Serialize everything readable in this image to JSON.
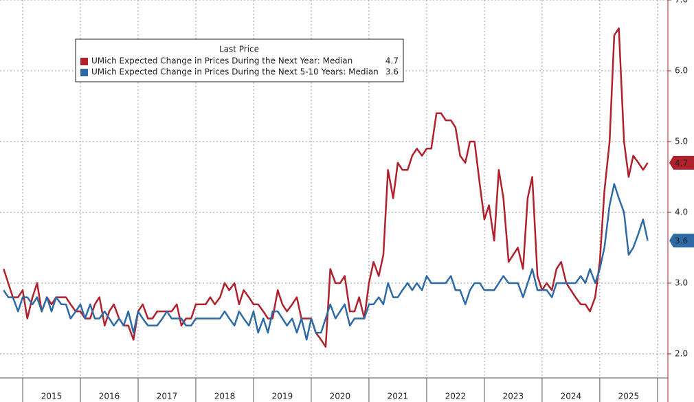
{
  "chart_data": {
    "type": "line",
    "legend_title": "Last Price",
    "x": [
      2014.67,
      2014.75,
      2014.83,
      2014.92,
      2015.0,
      2015.08,
      2015.17,
      2015.25,
      2015.33,
      2015.42,
      2015.5,
      2015.58,
      2015.67,
      2015.75,
      2015.83,
      2015.92,
      2016.0,
      2016.08,
      2016.17,
      2016.25,
      2016.33,
      2016.42,
      2016.5,
      2016.58,
      2016.67,
      2016.75,
      2016.83,
      2016.92,
      2017.0,
      2017.08,
      2017.17,
      2017.25,
      2017.33,
      2017.42,
      2017.5,
      2017.58,
      2017.67,
      2017.75,
      2017.83,
      2017.92,
      2018.0,
      2018.08,
      2018.17,
      2018.25,
      2018.33,
      2018.42,
      2018.5,
      2018.58,
      2018.67,
      2018.75,
      2018.83,
      2018.92,
      2019.0,
      2019.08,
      2019.17,
      2019.25,
      2019.33,
      2019.42,
      2019.5,
      2019.58,
      2019.67,
      2019.75,
      2019.83,
      2019.92,
      2020.0,
      2020.08,
      2020.17,
      2020.25,
      2020.33,
      2020.42,
      2020.5,
      2020.58,
      2020.67,
      2020.75,
      2020.83,
      2020.92,
      2021.0,
      2021.08,
      2021.17,
      2021.25,
      2021.33,
      2021.42,
      2021.5,
      2021.58,
      2021.67,
      2021.75,
      2021.83,
      2021.92,
      2022.0,
      2022.08,
      2022.17,
      2022.25,
      2022.33,
      2022.42,
      2022.5,
      2022.58,
      2022.67,
      2022.75,
      2022.83,
      2022.92,
      2023.0,
      2023.08,
      2023.17,
      2023.25,
      2023.33,
      2023.42,
      2023.5,
      2023.58,
      2023.67,
      2023.75,
      2023.83,
      2023.92,
      2024.0,
      2024.08,
      2024.17,
      2024.25,
      2024.33,
      2024.42,
      2024.5,
      2024.58,
      2024.67,
      2024.75,
      2024.83,
      2024.92,
      2025.0,
      2025.08,
      2025.17,
      2025.25,
      2025.33,
      2025.42,
      2025.5,
      2025.58,
      2025.67,
      2025.75,
      2025.83
    ],
    "series": [
      {
        "name": "UMich Expected Change in Prices During the Next Year: Median",
        "color": "#b0202d",
        "values": [
          3.2,
          3.0,
          2.8,
          2.8,
          2.9,
          2.5,
          2.8,
          3.0,
          2.6,
          2.8,
          2.7,
          2.8,
          2.8,
          2.8,
          2.7,
          2.6,
          2.6,
          2.5,
          2.5,
          2.7,
          2.8,
          2.4,
          2.6,
          2.7,
          2.5,
          2.4,
          2.4,
          2.2,
          2.6,
          2.7,
          2.5,
          2.5,
          2.6,
          2.6,
          2.6,
          2.6,
          2.7,
          2.4,
          2.5,
          2.5,
          2.7,
          2.7,
          2.7,
          2.8,
          2.7,
          2.8,
          3.0,
          2.9,
          3.0,
          2.7,
          2.9,
          2.8,
          2.7,
          2.7,
          2.6,
          2.5,
          2.5,
          2.9,
          2.7,
          2.6,
          2.7,
          2.8,
          2.5,
          2.5,
          2.5,
          2.3,
          2.2,
          2.1,
          3.2,
          3.0,
          3.0,
          3.1,
          2.6,
          2.6,
          2.8,
          2.5,
          3.0,
          3.3,
          3.1,
          3.4,
          4.6,
          4.2,
          4.7,
          4.6,
          4.6,
          4.8,
          4.9,
          4.8,
          4.9,
          4.9,
          5.4,
          5.4,
          5.3,
          5.3,
          5.2,
          4.8,
          4.7,
          5.0,
          5.0,
          4.4,
          3.9,
          4.1,
          3.6,
          4.6,
          4.2,
          3.3,
          3.4,
          3.5,
          3.2,
          4.2,
          4.5,
          3.1,
          2.9,
          3.0,
          2.9,
          3.2,
          3.3,
          3.0,
          2.9,
          2.8,
          2.7,
          2.7,
          2.6,
          2.8,
          3.3,
          4.3,
          5.0,
          6.5,
          6.6,
          5.0,
          4.5,
          4.8,
          4.7,
          4.6,
          4.7
        ]
      },
      {
        "name": "UMich Expected Change in Prices During the Next 5-10 Years: Median",
        "color": "#2d6aa6",
        "values": [
          2.9,
          2.8,
          2.8,
          2.6,
          2.8,
          2.8,
          2.7,
          2.8,
          2.6,
          2.8,
          2.6,
          2.8,
          2.7,
          2.7,
          2.5,
          2.6,
          2.7,
          2.5,
          2.7,
          2.5,
          2.5,
          2.6,
          2.5,
          2.4,
          2.5,
          2.4,
          2.6,
          2.3,
          2.6,
          2.5,
          2.4,
          2.4,
          2.4,
          2.5,
          2.6,
          2.5,
          2.5,
          2.5,
          2.4,
          2.4,
          2.5,
          2.5,
          2.5,
          2.5,
          2.5,
          2.5,
          2.6,
          2.5,
          2.4,
          2.6,
          2.5,
          2.4,
          2.6,
          2.3,
          2.5,
          2.3,
          2.6,
          2.6,
          2.5,
          2.4,
          2.5,
          2.3,
          2.5,
          2.2,
          2.5,
          2.3,
          2.3,
          2.5,
          2.7,
          2.5,
          2.6,
          2.7,
          2.4,
          2.5,
          2.5,
          2.5,
          2.7,
          2.7,
          2.8,
          2.7,
          3.0,
          2.8,
          2.8,
          2.9,
          3.0,
          2.9,
          3.0,
          2.9,
          3.1,
          3.0,
          3.0,
          3.0,
          3.0,
          3.1,
          2.9,
          2.9,
          2.7,
          2.9,
          3.0,
          3.0,
          2.9,
          2.9,
          2.9,
          3.0,
          3.1,
          3.0,
          3.0,
          3.0,
          2.8,
          3.0,
          3.2,
          2.9,
          2.9,
          2.9,
          2.8,
          3.0,
          3.0,
          3.0,
          3.0,
          3.0,
          3.1,
          3.0,
          3.2,
          3.0,
          3.2,
          3.5,
          4.1,
          4.4,
          4.2,
          4.0,
          3.4,
          3.5,
          3.7,
          3.9,
          3.6
        ]
      }
    ],
    "xlim": [
      2014.607,
      2026.18
    ],
    "xgrid": [
      2015,
      2016,
      2017,
      2018,
      2019,
      2020,
      2021,
      2022,
      2023,
      2024,
      2025,
      2026
    ],
    "xticks": [
      {
        "value": 2015.5,
        "label": "2015"
      },
      {
        "value": 2016.5,
        "label": "2016"
      },
      {
        "value": 2017.5,
        "label": "2017"
      },
      {
        "value": 2018.5,
        "label": "2018"
      },
      {
        "value": 2019.5,
        "label": "2019"
      },
      {
        "value": 2020.5,
        "label": "2020"
      },
      {
        "value": 2021.5,
        "label": "2021"
      },
      {
        "value": 2022.5,
        "label": "2022"
      },
      {
        "value": 2023.5,
        "label": "2023"
      },
      {
        "value": 2024.5,
        "label": "2024"
      },
      {
        "value": 2025.5,
        "label": "2025"
      }
    ],
    "ylim": [
      1.66,
      7.0
    ],
    "yticks": [
      {
        "value": 2,
        "label": "2.0"
      },
      {
        "value": 3,
        "label": "3.0"
      },
      {
        "value": 4,
        "label": "4.0"
      },
      {
        "value": 5,
        "label": "5.0"
      },
      {
        "value": 6,
        "label": "6.0"
      },
      {
        "value": 7,
        "label": "7.0"
      }
    ],
    "grid": true,
    "legend": "upper left"
  }
}
